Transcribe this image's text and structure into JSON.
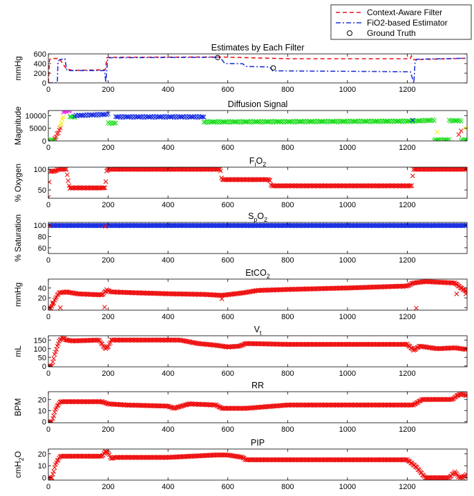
{
  "legend": {
    "position": "top-right",
    "entries": [
      {
        "label": "Context-Aware Filter",
        "color": "#e8141c",
        "style": "dashed",
        "marker": "line"
      },
      {
        "label": "FiO2-based Estimator",
        "color": "#1f31d6",
        "style": "dashdot",
        "marker": "line"
      },
      {
        "label": "Ground Truth",
        "color": "#000000",
        "style": "none",
        "marker": "circle"
      }
    ]
  },
  "colors": {
    "red": "#ee1111",
    "blue": "#1a2fe0",
    "green": "#1bdc1b",
    "magenta": "#f21ef2",
    "yellow": "#f2ee22"
  },
  "chart_data": [
    {
      "type": "line",
      "title": "Estimates by Each Filter",
      "ylabel": "mmHg",
      "xlim": [
        0,
        1400
      ],
      "ylim": [
        0,
        600
      ],
      "xticks": [
        "0",
        "200",
        "400",
        "600",
        "800",
        "1000",
        "1200"
      ],
      "yticks": [
        "0",
        "200",
        "400",
        "600"
      ],
      "series": [
        {
          "name": "Context-Aware Filter",
          "color": "#e8141c",
          "style": "dashed",
          "x": [
            0,
            4,
            8,
            12,
            28,
            36,
            60,
            80,
            190,
            196,
            200,
            575,
            800,
            1210,
            1214,
            1222,
            1400
          ],
          "y": [
            0,
            480,
            505,
            505,
            505,
            510,
            290,
            260,
            270,
            520,
            530,
            535,
            500,
            500,
            560,
            480,
            510
          ]
        },
        {
          "name": "FiO2-based Estimator",
          "color": "#1f31d6",
          "style": "dashdot",
          "x": [
            0,
            30,
            32,
            38,
            55,
            62,
            70,
            188,
            192,
            198,
            200,
            572,
            580,
            590,
            650,
            660,
            740,
            750,
            1210,
            1222,
            1226,
            1232,
            1400
          ],
          "y": [
            0,
            0,
            440,
            480,
            500,
            260,
            255,
            255,
            10,
            470,
            520,
            530,
            480,
            400,
            395,
            340,
            330,
            250,
            230,
            0,
            440,
            490,
            510
          ]
        },
        {
          "name": "Ground Truth",
          "color": "#000000",
          "marker": "circle",
          "x": [
            566,
            752
          ],
          "y": [
            525,
            310
          ]
        }
      ]
    },
    {
      "type": "scatter",
      "title": "Diffusion Signal",
      "ylabel": "Magnitude",
      "xlim": [
        0,
        1400
      ],
      "ylim": [
        0,
        12000
      ],
      "xticks": [
        "0",
        "200",
        "400",
        "600",
        "800",
        "1000",
        "1200"
      ],
      "yticks": [
        "0",
        "5000",
        "10000"
      ],
      "segments": [
        {
          "x0": 0,
          "x1": 22,
          "y": [
            300,
            300
          ],
          "color": "#1bdc1b"
        },
        {
          "x0": 22,
          "x1": 40,
          "y": [
            1000,
            5000
          ],
          "color": "#ee1111"
        },
        {
          "x0": 40,
          "x1": 50,
          "y": [
            6000,
            9500
          ],
          "color": "#f2ee22"
        },
        {
          "x0": 50,
          "x1": 72,
          "y": [
            11500,
            12000
          ],
          "color": "#f21ef2"
        },
        {
          "x0": 72,
          "x1": 88,
          "y": [
            9500,
            9500
          ],
          "color": "#1bdc1b"
        },
        {
          "x0": 88,
          "x1": 200,
          "y": [
            10000,
            10500
          ],
          "color": "#1a2fe0"
        },
        {
          "x0": 200,
          "x1": 225,
          "y": [
            7000,
            7000
          ],
          "color": "#1bdc1b"
        },
        {
          "x0": 225,
          "x1": 520,
          "y": [
            9500,
            9500
          ],
          "color": "#1a2fe0"
        },
        {
          "x0": 520,
          "x1": 1215,
          "y": [
            7500,
            7800
          ],
          "color": "#1bdc1b"
        },
        {
          "x0": 1215,
          "x1": 1290,
          "y": [
            7800,
            8200
          ],
          "color": "#1bdc1b"
        },
        {
          "x0": 1290,
          "x1": 1340,
          "y": [
            400,
            400
          ],
          "color": "#1bdc1b"
        },
        {
          "x0": 1340,
          "x1": 1380,
          "y": [
            8000,
            8000
          ],
          "color": "#1bdc1b"
        },
        {
          "x0": 1380,
          "x1": 1400,
          "y": [
            400,
            400
          ],
          "color": "#1bdc1b"
        }
      ],
      "extra_points": [
        {
          "x": 1218,
          "y": 8200,
          "color": "#1a2fe0"
        },
        {
          "x": 1300,
          "y": 3500,
          "color": "#f2ee22"
        },
        {
          "x": 1372,
          "y": 2500,
          "color": "#ee1111"
        },
        {
          "x": 1380,
          "y": 4000,
          "color": "#ee1111"
        },
        {
          "x": 1394,
          "y": 5000,
          "color": "#f2ee22"
        }
      ]
    },
    {
      "type": "scatter",
      "title": "FiO2",
      "title_main": "F",
      "title_sub": "i",
      "title_rest": "O",
      "title_sub2": "2",
      "ylabel": "% Oxygen",
      "xlim": [
        0,
        1400
      ],
      "ylim": [
        30,
        105
      ],
      "xticks": [
        "0",
        "200",
        "400",
        "600",
        "800",
        "1000",
        "1200"
      ],
      "yticks": [
        "50",
        "100"
      ],
      "color": "#ee1111",
      "x": [
        0,
        5,
        20,
        35,
        60,
        70,
        188,
        190,
        195,
        200,
        575,
        580,
        650,
        655,
        740,
        745,
        1210,
        1215,
        1220,
        1400
      ],
      "y": [
        32,
        95,
        95,
        100,
        100,
        55,
        55,
        55,
        95,
        100,
        100,
        75,
        75,
        75,
        75,
        60,
        60,
        60,
        100,
        100
      ]
    },
    {
      "type": "scatter",
      "title": "SpO2",
      "title_main": "S",
      "title_sub": "p",
      "title_rest": "O",
      "title_sub2": "2",
      "ylabel": "% Saturation",
      "xlim": [
        0,
        1400
      ],
      "ylim": [
        50,
        105
      ],
      "xticks": [
        "0",
        "200",
        "400",
        "600",
        "800",
        "1000",
        "1200"
      ],
      "yticks": [
        "60",
        "80",
        "100"
      ],
      "color": "#1a2fe0",
      "x": [
        0,
        1400
      ],
      "y": [
        99.5,
        99.5
      ],
      "extra_points": [
        {
          "x": 4,
          "y": 99,
          "color": "#ee1111"
        },
        {
          "x": 190,
          "y": 98,
          "color": "#ee1111"
        }
      ]
    },
    {
      "type": "scatter",
      "title": "EtCO2",
      "title_main": "EtCO",
      "title_sub": "2",
      "ylabel": "mmHg",
      "xlim": [
        0,
        1400
      ],
      "ylim": [
        -5,
        58
      ],
      "xticks": [
        "0",
        "200",
        "400",
        "600",
        "800",
        "1000",
        "1200"
      ],
      "yticks": [
        "0",
        "20",
        "40"
      ],
      "color": "#ee1111",
      "x": [
        0,
        10,
        25,
        35,
        60,
        100,
        180,
        195,
        210,
        300,
        420,
        520,
        580,
        650,
        700,
        800,
        1000,
        1200,
        1220,
        1260,
        1360,
        1380,
        1400
      ],
      "y": [
        0,
        0,
        20,
        30,
        32,
        28,
        26,
        36,
        32,
        30,
        28,
        27,
        25,
        30,
        35,
        37,
        40,
        44,
        50,
        53,
        50,
        40,
        32
      ],
      "extra_points": [
        {
          "x": 14,
          "y": 10,
          "color": "#ee1111"
        },
        {
          "x": 40,
          "y": 0,
          "color": "#ee1111"
        },
        {
          "x": 188,
          "y": 1,
          "color": "#ee1111"
        },
        {
          "x": 580,
          "y": 18,
          "color": "#ee1111"
        },
        {
          "x": 1230,
          "y": -1,
          "color": "#ee1111"
        },
        {
          "x": 1365,
          "y": 28,
          "color": "#ee1111"
        },
        {
          "x": 1396,
          "y": 28,
          "color": "#ee1111"
        }
      ]
    },
    {
      "type": "scatter",
      "title": "Vt",
      "title_main": "V",
      "title_sub": "t",
      "ylabel": "mL",
      "xlim": [
        0,
        1400
      ],
      "ylim": [
        -5,
        175
      ],
      "xticks": [
        "0",
        "200",
        "400",
        "600",
        "800",
        "1000",
        "1200"
      ],
      "yticks": [
        "0",
        "50",
        "100",
        "150"
      ],
      "color": "#ee1111",
      "x": [
        0,
        12,
        20,
        35,
        45,
        60,
        80,
        170,
        190,
        200,
        210,
        230,
        300,
        440,
        500,
        560,
        600,
        640,
        660,
        800,
        1000,
        1200,
        1222,
        1240,
        1300,
        1360,
        1400
      ],
      "y": [
        0,
        0,
        60,
        140,
        165,
        150,
        145,
        150,
        100,
        110,
        150,
        150,
        150,
        150,
        130,
        120,
        110,
        115,
        130,
        125,
        125,
        125,
        90,
        115,
        100,
        105,
        95
      ]
    },
    {
      "type": "scatter",
      "title": "RR",
      "ylabel": "BPM",
      "xlim": [
        0,
        1400
      ],
      "ylim": [
        -1,
        27
      ],
      "xticks": [
        "0",
        "200",
        "400",
        "600",
        "800",
        "1000",
        "1200"
      ],
      "yticks": [
        "0",
        "10",
        "20"
      ],
      "color": "#ee1111",
      "x": [
        0,
        12,
        25,
        40,
        60,
        180,
        200,
        260,
        400,
        420,
        470,
        560,
        580,
        600,
        660,
        800,
        1000,
        1200,
        1220,
        1250,
        1350,
        1370,
        1385,
        1400
      ],
      "y": [
        0,
        0,
        12,
        18,
        18,
        18,
        16,
        15,
        14,
        12,
        16,
        15,
        12,
        12,
        12,
        15,
        15,
        15,
        15,
        20,
        20,
        24,
        25,
        23
      ]
    },
    {
      "type": "scatter",
      "title": "PIP",
      "ylabel": "cmH2O",
      "ylabel_main": "cmH",
      "ylabel_sub": "2",
      "ylabel_rest": "O",
      "xlim": [
        0,
        1400
      ],
      "ylim": [
        -2,
        24
      ],
      "xticks": [
        "0",
        "200",
        "400",
        "600",
        "800",
        "1000",
        "1200"
      ],
      "yticks": [
        "0",
        "10",
        "20"
      ],
      "color": "#ee1111",
      "x": [
        0,
        12,
        25,
        40,
        180,
        190,
        200,
        210,
        220,
        400,
        560,
        600,
        650,
        660,
        800,
        1000,
        1200,
        1230,
        1260,
        1300,
        1340,
        1360,
        1370,
        1385,
        1400
      ],
      "y": [
        0,
        0,
        12,
        18,
        18,
        22,
        21,
        16,
        17,
        17,
        19,
        19,
        17,
        15,
        15,
        15,
        15,
        9,
        0,
        0,
        0,
        5,
        1,
        0,
        3
      ]
    }
  ]
}
